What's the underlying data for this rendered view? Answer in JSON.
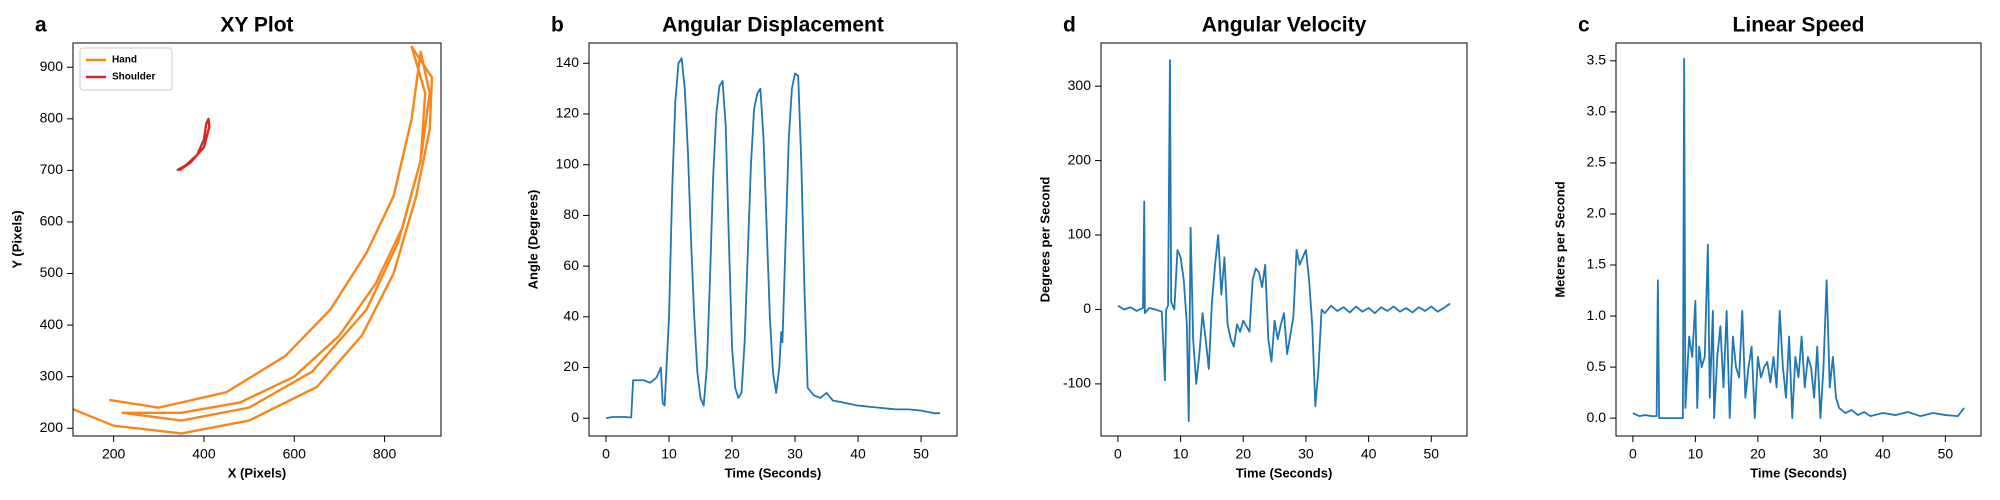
{
  "chart_data": [
    {
      "type": "line",
      "label": "a",
      "title": "XY Plot",
      "xlabel": "X (Pixels)",
      "ylabel": "Y (Pixels)",
      "xlim": [
        110,
        925
      ],
      "ylim": [
        185,
        947
      ],
      "xticks": [
        200,
        400,
        600,
        800
      ],
      "yticks": [
        200,
        300,
        400,
        500,
        600,
        700,
        800,
        900
      ],
      "legend": "upper left",
      "series": [
        {
          "name": "Hand",
          "color": "#f7861c",
          "x": [
            110,
            200,
            350,
            500,
            650,
            750,
            820,
            870,
            900,
            905,
            860,
            890,
            880,
            840,
            780,
            700,
            600,
            480,
            350,
            220,
            350,
            500,
            640,
            760,
            830,
            880,
            900,
            880,
            860,
            820,
            760,
            680,
            580,
            450,
            300,
            190
          ],
          "values": [
            237,
            205,
            190,
            215,
            280,
            380,
            500,
            650,
            780,
            880,
            940,
            850,
            720,
            590,
            480,
            380,
            300,
            250,
            230,
            230,
            215,
            240,
            310,
            430,
            560,
            720,
            850,
            930,
            800,
            650,
            540,
            430,
            340,
            270,
            240,
            255
          ]
        },
        {
          "name": "Shoulder",
          "color": "#d62728",
          "x": [
            340,
            360,
            385,
            400,
            405,
            410,
            412,
            400,
            370,
            345
          ],
          "values": [
            700,
            710,
            730,
            760,
            790,
            800,
            785,
            745,
            715,
            700
          ]
        }
      ]
    },
    {
      "type": "line",
      "label": "b",
      "title": "Angular Displacement",
      "xlabel": "Time (Seconds)",
      "ylabel": "Angle (Degrees)",
      "xlim": [
        -2.7,
        55.7
      ],
      "ylim": [
        -7,
        148
      ],
      "xticks": [
        0,
        10,
        20,
        30,
        40,
        50
      ],
      "yticks": [
        0,
        20,
        40,
        60,
        80,
        100,
        120,
        140
      ],
      "x": [
        0,
        1,
        2,
        3,
        4,
        4.3,
        5,
        6,
        7,
        8,
        8.7,
        9,
        9.3,
        10,
        10.5,
        11,
        11.5,
        12,
        12.5,
        13,
        13.5,
        14,
        14.5,
        15,
        15.5,
        16,
        16.5,
        17,
        17.5,
        18,
        18.5,
        19,
        19.5,
        20,
        20.5,
        21,
        21.5,
        22,
        22.5,
        23,
        23.5,
        24,
        24.5,
        25,
        25.5,
        26,
        26.5,
        27,
        27.5,
        27.8,
        28,
        28.5,
        29,
        29.5,
        30,
        30.5,
        31,
        31.5,
        32,
        33,
        34,
        35,
        36,
        38,
        40,
        42,
        44,
        46,
        48,
        50,
        52,
        53
      ],
      "series": [
        {
          "color": "#1f77b4",
          "values": [
            0,
            0.5,
            0.5,
            0.5,
            0.3,
            15,
            15,
            15,
            14,
            16,
            20,
            6,
            5,
            40,
            90,
            125,
            140,
            142,
            130,
            105,
            70,
            40,
            18,
            8,
            5,
            20,
            55,
            95,
            120,
            131,
            133,
            115,
            70,
            28,
            12,
            8,
            10,
            30,
            65,
            100,
            122,
            128,
            130,
            110,
            75,
            40,
            18,
            10,
            20,
            34,
            30,
            70,
            110,
            130,
            136,
            135,
            100,
            50,
            12,
            9,
            8,
            10,
            7,
            6,
            5,
            4.5,
            4,
            3.5,
            3.5,
            3,
            2,
            2
          ]
        }
      ]
    },
    {
      "type": "line",
      "label": "d",
      "title": "Angular Velocity",
      "xlabel": "Time (Seconds)",
      "ylabel": "Degrees per Second",
      "xlim": [
        -2.7,
        55.7
      ],
      "ylim": [
        -170,
        358
      ],
      "xticks": [
        0,
        10,
        20,
        30,
        40,
        50
      ],
      "yticks": [
        -100,
        0,
        100,
        200,
        300
      ],
      "x": [
        0,
        1,
        2,
        3,
        4,
        4.2,
        4.3,
        5,
        6,
        7,
        7.5,
        7.7,
        8,
        8.3,
        8.5,
        9,
        9.5,
        10,
        10.5,
        11,
        11.3,
        11.6,
        12,
        12.5,
        13,
        13.5,
        14,
        14.5,
        15,
        15.5,
        16,
        16.5,
        17,
        17.5,
        18,
        18.5,
        19,
        19.5,
        20,
        21,
        21.5,
        22,
        22.5,
        23,
        23.5,
        24,
        24.5,
        25,
        25.5,
        26,
        26.5,
        27,
        28,
        28.5,
        29,
        29.5,
        30,
        30.5,
        31,
        31.5,
        32,
        32.5,
        33,
        34,
        35,
        36,
        37,
        38,
        39,
        40,
        41,
        42,
        43,
        44,
        45,
        46,
        47,
        48,
        49,
        50,
        51,
        52,
        53
      ],
      "series": [
        {
          "color": "#1f77b4",
          "values": [
            5,
            0,
            3,
            -2,
            2,
            145,
            -5,
            2,
            0,
            -3,
            -95,
            0,
            5,
            335,
            10,
            0,
            80,
            70,
            40,
            -20,
            -150,
            110,
            -40,
            -100,
            -60,
            -5,
            -40,
            -80,
            10,
            60,
            100,
            20,
            70,
            -20,
            -40,
            -50,
            -20,
            -30,
            -15,
            -30,
            40,
            55,
            50,
            30,
            60,
            -40,
            -70,
            -15,
            -40,
            -20,
            -5,
            -60,
            -10,
            80,
            60,
            70,
            80,
            40,
            -20,
            -130,
            -80,
            0,
            -5,
            5,
            -2,
            3,
            -4,
            4,
            -3,
            2,
            -5,
            3,
            -2,
            4,
            -3,
            2,
            -4,
            3,
            -2,
            4,
            -3,
            2,
            8
          ]
        }
      ]
    },
    {
      "type": "line",
      "label": "c",
      "title": "Linear Speed",
      "xlabel": "Time (Seconds)",
      "ylabel": "Meters per Second",
      "xlim": [
        -2.7,
        55.7
      ],
      "ylim": [
        -0.175,
        3.675
      ],
      "xticks": [
        0,
        10,
        20,
        30,
        40,
        50
      ],
      "yticks": [
        {
          "value": 0,
          "label": "0.0"
        },
        {
          "value": 0.5,
          "label": "0.5"
        },
        {
          "value": 1,
          "label": "1.0"
        },
        {
          "value": 1.5,
          "label": "1.5"
        },
        {
          "value": 2,
          "label": "2.0"
        },
        {
          "value": 2.5,
          "label": "2.5"
        },
        {
          "value": 3,
          "label": "3.0"
        },
        {
          "value": 3.5,
          "label": "3.5"
        }
      ],
      "x": [
        0,
        1,
        2,
        3,
        3.8,
        4,
        4.2,
        5,
        6,
        7,
        8,
        8.2,
        8.4,
        9,
        9.5,
        10,
        10.3,
        10.6,
        11,
        11.5,
        12,
        12.3,
        12.8,
        13,
        13.5,
        14,
        14.5,
        15,
        15.5,
        16,
        16.5,
        17,
        17.5,
        18,
        18.5,
        19,
        19.5,
        20,
        20.5,
        21,
        21.5,
        22,
        22.5,
        23,
        23.5,
        24,
        24.5,
        25,
        25.5,
        26,
        26.5,
        27,
        27.5,
        28,
        28.5,
        29,
        29.5,
        30,
        30.5,
        31,
        31.5,
        32,
        32.5,
        33,
        34,
        35,
        36,
        37,
        38,
        40,
        42,
        44,
        46,
        48,
        50,
        52,
        53
      ],
      "series": [
        {
          "color": "#1f77b4",
          "values": [
            0.05,
            0.02,
            0.03,
            0.02,
            0.02,
            1.35,
            0,
            0,
            0,
            0,
            0,
            3.52,
            0.1,
            0.8,
            0.6,
            1.15,
            0.1,
            0.7,
            0.5,
            0.6,
            1.7,
            0.2,
            1.05,
            0,
            0.6,
            0.9,
            0.3,
            1.05,
            0,
            0.8,
            0.5,
            0.4,
            1.05,
            0.2,
            0.5,
            0.7,
            0,
            0.6,
            0.4,
            0.5,
            0.55,
            0.35,
            0.6,
            0.3,
            1.05,
            0.5,
            0.2,
            0.8,
            0,
            0.6,
            0.4,
            0.8,
            0.3,
            0.6,
            0.5,
            0.2,
            0.7,
            0,
            0.5,
            1.35,
            0.3,
            0.6,
            0.2,
            0.1,
            0.05,
            0.08,
            0.03,
            0.06,
            0.02,
            0.05,
            0.03,
            0.06,
            0.02,
            0.05,
            0.03,
            0.02,
            0.1
          ]
        }
      ]
    }
  ]
}
